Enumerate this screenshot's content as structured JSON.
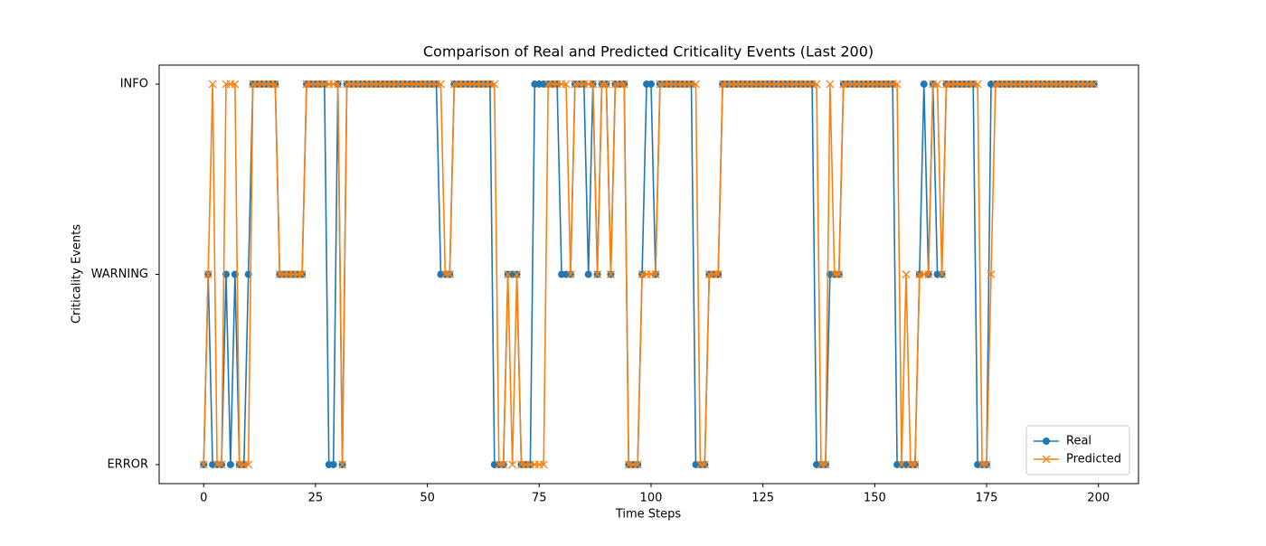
{
  "chart_data": {
    "type": "line",
    "title": "Comparison of Real and Predicted Criticality Events (Last 200)",
    "x_label": "Time Steps",
    "y_label": "Criticality Events",
    "x": [
      0,
      1,
      2,
      3,
      4,
      5,
      6,
      7,
      8,
      9,
      10,
      11,
      12,
      13,
      14,
      15,
      16,
      17,
      18,
      19,
      20,
      21,
      22,
      23,
      24,
      25,
      26,
      27,
      28,
      29,
      30,
      31,
      32,
      33,
      34,
      35,
      36,
      37,
      38,
      39,
      40,
      41,
      42,
      43,
      44,
      45,
      46,
      47,
      48,
      49,
      50,
      51,
      52,
      53,
      54,
      55,
      56,
      57,
      58,
      59,
      60,
      61,
      62,
      63,
      64,
      65,
      66,
      67,
      68,
      69,
      70,
      71,
      72,
      73,
      74,
      75,
      76,
      77,
      78,
      79,
      80,
      81,
      82,
      83,
      84,
      85,
      86,
      87,
      88,
      89,
      90,
      91,
      92,
      93,
      94,
      95,
      96,
      97,
      98,
      99,
      100,
      101,
      102,
      103,
      104,
      105,
      106,
      107,
      108,
      109,
      110,
      111,
      112,
      113,
      114,
      115,
      116,
      117,
      118,
      119,
      120,
      121,
      122,
      123,
      124,
      125,
      126,
      127,
      128,
      129,
      130,
      131,
      132,
      133,
      134,
      135,
      136,
      137,
      138,
      139,
      140,
      141,
      142,
      143,
      144,
      145,
      146,
      147,
      148,
      149,
      150,
      151,
      152,
      153,
      154,
      155,
      156,
      157,
      158,
      159,
      160,
      161,
      162,
      163,
      164,
      165,
      166,
      167,
      168,
      169,
      170,
      171,
      172,
      173,
      174,
      175,
      176,
      177,
      178,
      179,
      180,
      181,
      182,
      183,
      184,
      185,
      186,
      187,
      188,
      189,
      190,
      191,
      192,
      193,
      194,
      195,
      196,
      197,
      198,
      199
    ],
    "series": [
      {
        "name": "Real",
        "color": "#1f77b4",
        "marker": "circle",
        "values": [
          0,
          1,
          0,
          0,
          0,
          1,
          0,
          1,
          0,
          0,
          1,
          2,
          2,
          2,
          2,
          2,
          2,
          1,
          1,
          1,
          1,
          1,
          1,
          2,
          2,
          2,
          2,
          2,
          0,
          0,
          2,
          0,
          2,
          2,
          2,
          2,
          2,
          2,
          2,
          2,
          2,
          2,
          2,
          2,
          2,
          2,
          2,
          2,
          2,
          2,
          2,
          2,
          2,
          1,
          1,
          1,
          2,
          2,
          2,
          2,
          2,
          2,
          2,
          2,
          2,
          0,
          0,
          0,
          1,
          1,
          1,
          0,
          0,
          0,
          2,
          2,
          2,
          2,
          2,
          2,
          1,
          1,
          1,
          2,
          2,
          2,
          1,
          2,
          1,
          2,
          2,
          1,
          2,
          2,
          2,
          0,
          0,
          0,
          1,
          2,
          2,
          1,
          2,
          2,
          2,
          2,
          2,
          2,
          2,
          2,
          0,
          0,
          0,
          1,
          1,
          1,
          2,
          2,
          2,
          2,
          2,
          2,
          2,
          2,
          2,
          2,
          2,
          2,
          2,
          2,
          2,
          2,
          2,
          2,
          2,
          2,
          2,
          0,
          0,
          0,
          1,
          1,
          1,
          2,
          2,
          2,
          2,
          2,
          2,
          2,
          2,
          2,
          2,
          2,
          2,
          0,
          0,
          0,
          0,
          0,
          1,
          2,
          1,
          2,
          1,
          1,
          2,
          2,
          2,
          2,
          2,
          2,
          2,
          0,
          0,
          0,
          2,
          2,
          2,
          2,
          2,
          2,
          2,
          2,
          2,
          2,
          2,
          2,
          2,
          2,
          2,
          2,
          2,
          2,
          2,
          2,
          2,
          2,
          2,
          2
        ]
      },
      {
        "name": "Predicted",
        "color": "#ff7f0e",
        "marker": "x",
        "values": [
          0,
          1,
          2,
          0,
          0,
          2,
          2,
          2,
          0,
          0,
          0,
          2,
          2,
          2,
          2,
          2,
          2,
          1,
          1,
          1,
          1,
          1,
          1,
          2,
          2,
          2,
          2,
          2,
          2,
          2,
          2,
          0,
          2,
          2,
          2,
          2,
          2,
          2,
          2,
          2,
          2,
          2,
          2,
          2,
          2,
          2,
          2,
          2,
          2,
          2,
          2,
          2,
          2,
          2,
          1,
          1,
          2,
          2,
          2,
          2,
          2,
          2,
          2,
          2,
          2,
          2,
          0,
          0,
          1,
          0,
          1,
          0,
          0,
          0,
          0,
          0,
          0,
          2,
          2,
          2,
          2,
          2,
          1,
          2,
          2,
          2,
          2,
          2,
          1,
          2,
          2,
          1,
          2,
          2,
          2,
          0,
          0,
          0,
          1,
          1,
          1,
          1,
          2,
          2,
          2,
          2,
          2,
          2,
          2,
          2,
          2,
          0,
          0,
          1,
          1,
          1,
          2,
          2,
          2,
          2,
          2,
          2,
          2,
          2,
          2,
          2,
          2,
          2,
          2,
          2,
          2,
          2,
          2,
          2,
          2,
          2,
          2,
          2,
          0,
          0,
          2,
          1,
          1,
          2,
          2,
          2,
          2,
          2,
          2,
          2,
          2,
          2,
          2,
          2,
          2,
          2,
          0,
          1,
          0,
          0,
          1,
          1,
          1,
          2,
          2,
          1,
          2,
          2,
          2,
          2,
          2,
          2,
          2,
          2,
          0,
          0,
          1,
          2,
          2,
          2,
          2,
          2,
          2,
          2,
          2,
          2,
          2,
          2,
          2,
          2,
          2,
          2,
          2,
          2,
          2,
          2,
          2,
          2,
          2,
          2
        ]
      }
    ],
    "xlim": [
      -9.95,
      208.95
    ],
    "xticks": [
      0,
      25,
      50,
      75,
      100,
      125,
      150,
      175,
      200
    ],
    "ylim": [
      -0.1,
      2.1
    ],
    "yticks": [
      {
        "value": 0,
        "label": "ERROR"
      },
      {
        "value": 1,
        "label": "WARNING"
      },
      {
        "value": 2,
        "label": "INFO"
      }
    ],
    "legend": "lower right",
    "grid": false
  }
}
